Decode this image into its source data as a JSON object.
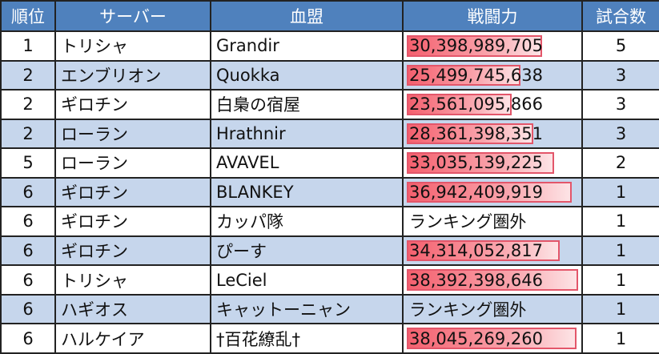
{
  "headers": [
    "順位",
    "サーバー",
    "血盟",
    "戦闘力",
    "試合数"
  ],
  "power_max": 38392398646,
  "rows": [
    {
      "rank": "1",
      "server": "トリシャ",
      "guild": "Grandir",
      "power": "30,398,989,705",
      "power_value": 30398989705,
      "matches": "5"
    },
    {
      "rank": "2",
      "server": "エンブリオン",
      "guild": "Quokka",
      "power": "25,499,745,638",
      "power_value": 25499745638,
      "matches": "3"
    },
    {
      "rank": "2",
      "server": "ギロチン",
      "guild": "白梟の宿屋",
      "power": "23,561,095,866",
      "power_value": 23561095866,
      "matches": "3"
    },
    {
      "rank": "2",
      "server": "ローラン",
      "guild": "Hrathnir",
      "power": "28,361,398,351",
      "power_value": 28361398351,
      "matches": "3"
    },
    {
      "rank": "5",
      "server": "ローラン",
      "guild": "AVAVEL",
      "power": "33,035,139,225",
      "power_value": 33035139225,
      "matches": "2"
    },
    {
      "rank": "6",
      "server": "ギロチン",
      "guild": "BLANKEY",
      "power": "36,942,409,919",
      "power_value": 36942409919,
      "matches": "1"
    },
    {
      "rank": "6",
      "server": "ギロチン",
      "guild": "カッパ隊",
      "power": "ランキング圏外",
      "power_value": null,
      "matches": "1"
    },
    {
      "rank": "6",
      "server": "ギロチン",
      "guild": "ぴーす",
      "power": "34,314,052,817",
      "power_value": 34314052817,
      "matches": "1"
    },
    {
      "rank": "6",
      "server": "トリシャ",
      "guild": "LeCiel",
      "power": "38,392,398,646",
      "power_value": 38392398646,
      "matches": "1"
    },
    {
      "rank": "6",
      "server": "ハギオス",
      "guild": "キャットーニャン",
      "power": "ランキング圏外",
      "power_value": null,
      "matches": "1"
    },
    {
      "rank": "6",
      "server": "ハルケイア",
      "guild": "†百花繚乱†",
      "power": "38,045,269,260",
      "power_value": 38045269260,
      "matches": "1"
    }
  ]
}
